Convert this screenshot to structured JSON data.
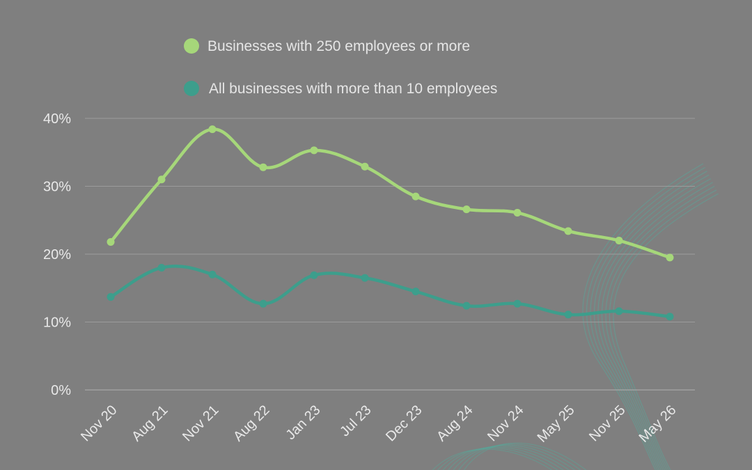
{
  "colors": {
    "background": "#7f7f7f",
    "series_large": "#a6d77a",
    "series_all": "#3d9e8c",
    "decoration": "#58a89a"
  },
  "chart_data": {
    "type": "line",
    "title": "",
    "xlabel": "",
    "ylabel": "",
    "categories": [
      "Nov 20",
      "Aug 21",
      "Nov 21",
      "Aug 22",
      "Jan 23",
      "Jul 23",
      "Dec 23",
      "Aug 24",
      "Nov 24",
      "May 25",
      "Nov 25",
      "May 26"
    ],
    "ylim": [
      0,
      40
    ],
    "yticks": [
      0,
      10,
      20,
      30,
      40
    ],
    "ytick_labels": [
      "0%",
      "10%",
      "20%",
      "30%",
      "40%"
    ],
    "grid": true,
    "legend_position": "top-left",
    "series": [
      {
        "name": "Businesses with 250 employees or more",
        "color": "#a6d77a",
        "values": [
          21.8,
          31.0,
          38.4,
          32.8,
          35.3,
          32.9,
          28.5,
          26.6,
          26.1,
          23.4,
          22.0,
          19.5
        ]
      },
      {
        "name": "All businesses with more than 10 employees",
        "color": "#3d9e8c",
        "values": [
          13.7,
          18.0,
          17.0,
          12.7,
          16.9,
          16.5,
          14.5,
          12.4,
          12.7,
          11.1,
          11.6,
          10.8
        ]
      }
    ]
  }
}
